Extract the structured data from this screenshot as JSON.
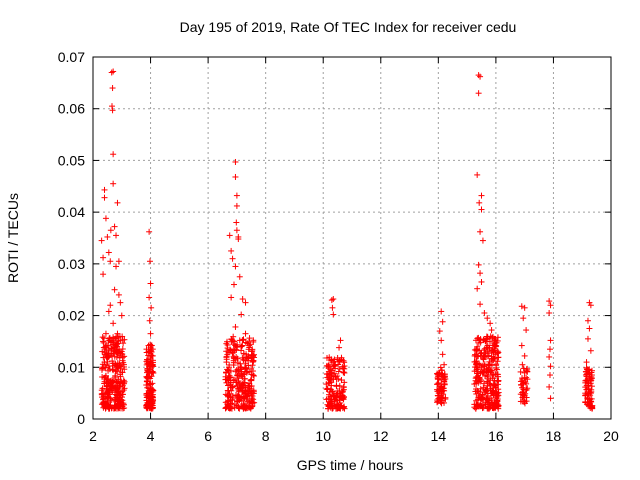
{
  "chart_data": {
    "type": "scatter",
    "title": "Day 195 of 2019, Rate Of TEC Index for receiver cedu",
    "xlabel": "GPS time / hours",
    "ylabel": "ROTI / TECUs",
    "xlim": [
      2,
      20
    ],
    "ylim": [
      0,
      0.07
    ],
    "xticks": [
      2,
      4,
      6,
      8,
      10,
      12,
      14,
      16,
      18,
      20
    ],
    "yticks": [
      0,
      0.01,
      0.02,
      0.03,
      0.04,
      0.05,
      0.06,
      0.07
    ],
    "grid": true,
    "marker": "+",
    "color": "#ff0000",
    "series": [
      {
        "name": "ROTI",
        "points": [
          [
            2.3,
            0.0345
          ],
          [
            2.35,
            0.0312
          ],
          [
            2.35,
            0.028
          ],
          [
            2.4,
            0.0443
          ],
          [
            2.4,
            0.0428
          ],
          [
            2.45,
            0.0388
          ],
          [
            2.5,
            0.0352
          ],
          [
            2.55,
            0.0322
          ],
          [
            2.6,
            0.0305
          ],
          [
            2.62,
            0.0365
          ],
          [
            2.65,
            0.067
          ],
          [
            2.7,
            0.0672
          ],
          [
            2.68,
            0.064
          ],
          [
            2.66,
            0.0605
          ],
          [
            2.68,
            0.0597
          ],
          [
            2.7,
            0.0512
          ],
          [
            2.7,
            0.0455
          ],
          [
            2.75,
            0.0372
          ],
          [
            2.8,
            0.0355
          ],
          [
            2.85,
            0.0418
          ],
          [
            2.9,
            0.0305
          ],
          [
            2.8,
            0.0295
          ],
          [
            2.75,
            0.025
          ],
          [
            2.9,
            0.024
          ],
          [
            2.95,
            0.0225
          ],
          [
            3.0,
            0.02
          ],
          [
            2.6,
            0.022
          ],
          [
            2.7,
            0.0185
          ],
          [
            2.85,
            0.0165
          ],
          [
            2.95,
            0.0152
          ],
          [
            2.35,
            0.015
          ],
          [
            2.4,
            0.011
          ],
          [
            2.5,
            0.0065
          ],
          [
            2.6,
            0.004
          ],
          [
            2.9,
            0.003
          ],
          [
            2.45,
            0.0165
          ],
          [
            2.55,
            0.0208
          ],
          [
            3.95,
            0.0362
          ],
          [
            3.98,
            0.0305
          ],
          [
            4.0,
            0.0262
          ],
          [
            3.95,
            0.0235
          ],
          [
            4.02,
            0.0215
          ],
          [
            3.97,
            0.019
          ],
          [
            4.0,
            0.0165
          ],
          [
            3.93,
            0.0142
          ],
          [
            4.05,
            0.0122
          ],
          [
            3.9,
            0.008
          ],
          [
            4.05,
            0.003
          ],
          [
            6.75,
            0.0355
          ],
          [
            6.8,
            0.0325
          ],
          [
            6.85,
            0.031
          ],
          [
            6.95,
            0.0497
          ],
          [
            6.95,
            0.0468
          ],
          [
            7.0,
            0.0432
          ],
          [
            7.0,
            0.0412
          ],
          [
            6.98,
            0.038
          ],
          [
            7.0,
            0.0365
          ],
          [
            7.05,
            0.0352
          ],
          [
            7.05,
            0.0348
          ],
          [
            6.95,
            0.0295
          ],
          [
            7.1,
            0.0275
          ],
          [
            6.9,
            0.026
          ],
          [
            6.8,
            0.0235
          ],
          [
            7.2,
            0.0232
          ],
          [
            7.3,
            0.0225
          ],
          [
            7.15,
            0.0202
          ],
          [
            7.3,
            0.0165
          ],
          [
            7.1,
            0.0152
          ],
          [
            6.95,
            0.0178
          ],
          [
            10.3,
            0.023
          ],
          [
            10.35,
            0.0232
          ],
          [
            10.32,
            0.0215
          ],
          [
            10.35,
            0.0202
          ],
          [
            10.6,
            0.0152
          ],
          [
            10.55,
            0.0138
          ],
          [
            10.5,
            0.0118
          ],
          [
            10.2,
            0.0105
          ],
          [
            10.7,
            0.009
          ],
          [
            10.25,
            0.003
          ],
          [
            14.1,
            0.0208
          ],
          [
            14.15,
            0.0188
          ],
          [
            14.05,
            0.017
          ],
          [
            14.1,
            0.0152
          ],
          [
            14.15,
            0.0125
          ],
          [
            14.2,
            0.0105
          ],
          [
            14.0,
            0.0085
          ],
          [
            15.4,
            0.0665
          ],
          [
            15.45,
            0.0662
          ],
          [
            15.4,
            0.063
          ],
          [
            15.35,
            0.0472
          ],
          [
            15.5,
            0.0432
          ],
          [
            15.42,
            0.0418
          ],
          [
            15.5,
            0.0405
          ],
          [
            15.45,
            0.0362
          ],
          [
            15.55,
            0.0345
          ],
          [
            15.4,
            0.0298
          ],
          [
            15.45,
            0.0282
          ],
          [
            15.5,
            0.0265
          ],
          [
            15.35,
            0.0252
          ],
          [
            15.45,
            0.0222
          ],
          [
            15.6,
            0.0205
          ],
          [
            15.7,
            0.0195
          ],
          [
            15.8,
            0.0185
          ],
          [
            15.85,
            0.0172
          ],
          [
            15.95,
            0.0155
          ],
          [
            16.0,
            0.0142
          ],
          [
            15.5,
            0.0128
          ],
          [
            15.6,
            0.0102
          ],
          [
            15.7,
            0.0085
          ],
          [
            16.9,
            0.0218
          ],
          [
            17.0,
            0.0215
          ],
          [
            16.95,
            0.0195
          ],
          [
            17.05,
            0.0172
          ],
          [
            16.9,
            0.0142
          ],
          [
            17.0,
            0.0122
          ],
          [
            16.92,
            0.0105
          ],
          [
            17.05,
            0.008
          ],
          [
            16.95,
            0.006
          ],
          [
            17.0,
            0.0045
          ],
          [
            17.85,
            0.0228
          ],
          [
            17.9,
            0.022
          ],
          [
            17.85,
            0.0205
          ],
          [
            17.9,
            0.0152
          ],
          [
            17.88,
            0.0135
          ],
          [
            17.85,
            0.012
          ],
          [
            17.9,
            0.0102
          ],
          [
            17.88,
            0.0085
          ],
          [
            17.85,
            0.0062
          ],
          [
            17.9,
            0.004
          ],
          [
            19.25,
            0.0225
          ],
          [
            19.3,
            0.022
          ],
          [
            19.2,
            0.019
          ],
          [
            19.25,
            0.0175
          ],
          [
            19.2,
            0.0155
          ],
          [
            19.3,
            0.0132
          ],
          [
            19.15,
            0.011
          ],
          [
            19.25,
            0.009
          ],
          [
            19.2,
            0.007
          ],
          [
            19.3,
            0.005
          ],
          [
            19.25,
            0.003
          ]
        ],
        "dense_clusters": [
          {
            "x_min": 2.3,
            "x_max": 3.1,
            "y_min": 0.002,
            "y_max": 0.016,
            "count": 300
          },
          {
            "x_min": 3.85,
            "x_max": 4.1,
            "y_min": 0.002,
            "y_max": 0.015,
            "count": 140
          },
          {
            "x_min": 6.6,
            "x_max": 7.6,
            "y_min": 0.002,
            "y_max": 0.016,
            "count": 300
          },
          {
            "x_min": 10.1,
            "x_max": 10.75,
            "y_min": 0.002,
            "y_max": 0.012,
            "count": 160
          },
          {
            "x_min": 13.95,
            "x_max": 14.25,
            "y_min": 0.003,
            "y_max": 0.01,
            "count": 70
          },
          {
            "x_min": 15.25,
            "x_max": 16.1,
            "y_min": 0.002,
            "y_max": 0.016,
            "count": 300
          },
          {
            "x_min": 16.85,
            "x_max": 17.1,
            "y_min": 0.003,
            "y_max": 0.01,
            "count": 40
          },
          {
            "x_min": 19.1,
            "x_max": 19.35,
            "y_min": 0.002,
            "y_max": 0.01,
            "count": 80
          }
        ]
      }
    ]
  }
}
